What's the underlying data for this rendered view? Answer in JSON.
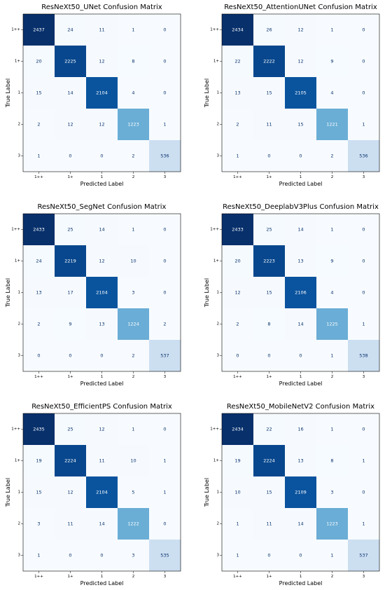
{
  "chart_data": [
    {
      "type": "heatmap",
      "title": "ResNeXt50_UNet Confusion Matrix",
      "xlabel": "Predicted Label",
      "ylabel": "True Label",
      "x_categories": [
        "1++",
        "1+",
        "1",
        "2",
        "3"
      ],
      "y_categories": [
        "1++",
        "1+",
        "1",
        "2",
        "3"
      ],
      "values": [
        [
          2437,
          24,
          11,
          1,
          0
        ],
        [
          20,
          2225,
          12,
          8,
          0
        ],
        [
          15,
          14,
          2104,
          4,
          0
        ],
        [
          2,
          12,
          12,
          1223,
          1
        ],
        [
          1,
          0,
          0,
          2,
          536
        ]
      ],
      "colormap": "Blues"
    },
    {
      "type": "heatmap",
      "title": "ResNeXt50_AttentionUNet Confusion Matrix",
      "xlabel": "Predicted Label",
      "ylabel": "True Label",
      "x_categories": [
        "1++",
        "1+",
        "1",
        "2",
        "3"
      ],
      "y_categories": [
        "1++",
        "1+",
        "1",
        "2",
        "3"
      ],
      "values": [
        [
          2434,
          26,
          12,
          1,
          0
        ],
        [
          22,
          2222,
          12,
          9,
          0
        ],
        [
          13,
          15,
          2105,
          4,
          0
        ],
        [
          2,
          11,
          15,
          1221,
          1
        ],
        [
          1,
          0,
          0,
          2,
          536
        ]
      ],
      "colormap": "Blues"
    },
    {
      "type": "heatmap",
      "title": "ResNeXt50_SegNet Confusion Matrix",
      "xlabel": "Predicted Label",
      "ylabel": "True Label",
      "x_categories": [
        "1++",
        "1+",
        "1",
        "2",
        "3"
      ],
      "y_categories": [
        "1++",
        "1+",
        "1",
        "2",
        "3"
      ],
      "values": [
        [
          2433,
          25,
          14,
          1,
          0
        ],
        [
          24,
          2219,
          12,
          10,
          0
        ],
        [
          13,
          17,
          2104,
          3,
          0
        ],
        [
          2,
          9,
          13,
          1224,
          2
        ],
        [
          0,
          0,
          0,
          2,
          537
        ]
      ],
      "colormap": "Blues"
    },
    {
      "type": "heatmap",
      "title": "ResNeXt50_DeeplabV3Plus Confusion Matrix",
      "xlabel": "Predicted Label",
      "ylabel": "True Label",
      "x_categories": [
        "1++",
        "1+",
        "1",
        "2",
        "3"
      ],
      "y_categories": [
        "1++",
        "1+",
        "1",
        "2",
        "3"
      ],
      "values": [
        [
          2433,
          25,
          14,
          1,
          0
        ],
        [
          20,
          2223,
          13,
          9,
          0
        ],
        [
          12,
          15,
          2106,
          4,
          0
        ],
        [
          2,
          8,
          14,
          1225,
          1
        ],
        [
          0,
          0,
          0,
          1,
          538
        ]
      ],
      "colormap": "Blues"
    },
    {
      "type": "heatmap",
      "title": "ResNeXt50_EfficientPS Confusion Matrix",
      "xlabel": "Predicted Label",
      "ylabel": "True Label",
      "x_categories": [
        "1++",
        "1+",
        "1",
        "2",
        "3"
      ],
      "y_categories": [
        "1++",
        "1+",
        "1",
        "2",
        "3"
      ],
      "values": [
        [
          2435,
          25,
          12,
          1,
          0
        ],
        [
          19,
          2224,
          11,
          10,
          1
        ],
        [
          15,
          12,
          2104,
          5,
          1
        ],
        [
          3,
          11,
          14,
          1222,
          0
        ],
        [
          1,
          0,
          0,
          3,
          535
        ]
      ],
      "colormap": "Blues"
    },
    {
      "type": "heatmap",
      "title": "ResNeXt50_MobileNetV2 Confusion Matrix",
      "xlabel": "Predicted Label",
      "ylabel": "True Label",
      "x_categories": [
        "1++",
        "1+",
        "1",
        "2",
        "3"
      ],
      "y_categories": [
        "1++",
        "1+",
        "1",
        "2",
        "3"
      ],
      "values": [
        [
          2434,
          22,
          16,
          1,
          0
        ],
        [
          19,
          2224,
          13,
          8,
          1
        ],
        [
          10,
          15,
          2109,
          3,
          0
        ],
        [
          1,
          11,
          14,
          1223,
          1
        ],
        [
          1,
          0,
          0,
          1,
          537
        ]
      ],
      "colormap": "Blues"
    }
  ]
}
